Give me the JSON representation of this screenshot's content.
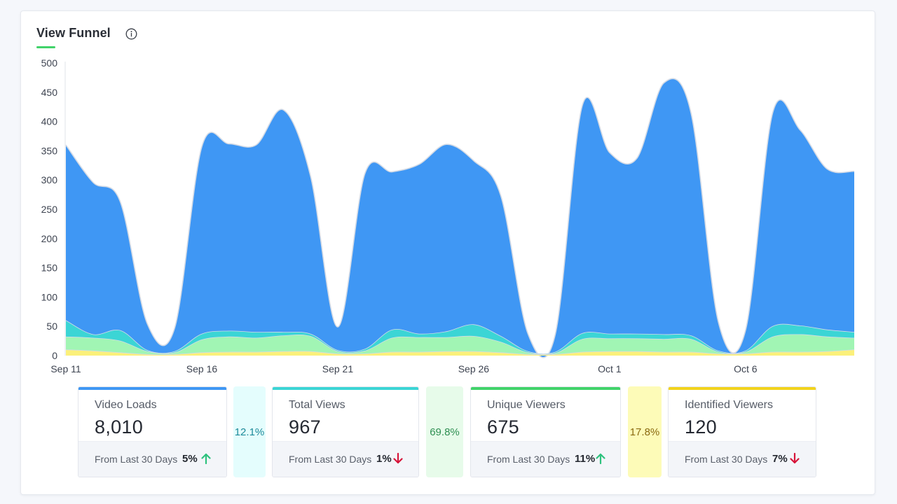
{
  "panel": {
    "title": "View Funnel",
    "info_icon": "info-circle-icon",
    "accent_color": "#41d36a"
  },
  "chart_data": {
    "type": "area",
    "stacked": true,
    "x": [
      "Sep 11",
      "Sep 12",
      "Sep 13",
      "Sep 14",
      "Sep 15",
      "Sep 16",
      "Sep 17",
      "Sep 18",
      "Sep 19",
      "Sep 20",
      "Sep 21",
      "Sep 22",
      "Sep 23",
      "Sep 24",
      "Sep 25",
      "Sep 26",
      "Sep 27",
      "Sep 28",
      "Sep 29",
      "Sep 30",
      "Oct 1",
      "Oct 2",
      "Oct 3",
      "Oct 4",
      "Oct 5",
      "Oct 6",
      "Oct 7",
      "Oct 8",
      "Oct 9",
      "Oct 10"
    ],
    "xticks": [
      "Sep 11",
      "Sep 16",
      "Sep 21",
      "Sep 26",
      "Oct 1",
      "Oct 6"
    ],
    "yticks": [
      0,
      50,
      100,
      150,
      200,
      250,
      300,
      350,
      400,
      450,
      500
    ],
    "ylim": [
      0,
      500
    ],
    "series": [
      {
        "color": "#fbf07a",
        "values": [
          10,
          8,
          5,
          2,
          2,
          5,
          6,
          6,
          7,
          7,
          3,
          3,
          6,
          6,
          7,
          7,
          5,
          2,
          2,
          6,
          7,
          7,
          6,
          6,
          3,
          3,
          6,
          6,
          7,
          10
        ]
      },
      {
        "color": "#a1f5b4",
        "values": [
          22,
          22,
          20,
          5,
          3,
          22,
          26,
          24,
          27,
          26,
          4,
          5,
          24,
          25,
          24,
          26,
          18,
          3,
          2,
          22,
          22,
          22,
          22,
          22,
          3,
          3,
          26,
          30,
          25,
          20
        ]
      },
      {
        "color": "#3bd5d5",
        "values": [
          28,
          6,
          18,
          2,
          2,
          10,
          10,
          10,
          6,
          4,
          2,
          3,
          14,
          6,
          10,
          20,
          10,
          2,
          2,
          10,
          8,
          8,
          8,
          6,
          2,
          2,
          18,
          15,
          12,
          10
        ]
      },
      {
        "color": "#3f97f4",
        "values": [
          300,
          260,
          220,
          45,
          40,
          320,
          320,
          320,
          380,
          270,
          40,
          300,
          270,
          290,
          320,
          280,
          240,
          30,
          30,
          390,
          310,
          300,
          430,
          380,
          50,
          35,
          365,
          335,
          275,
          275
        ]
      }
    ],
    "xlabel": "",
    "ylabel": "",
    "grid": false,
    "legend": "none"
  },
  "stats": [
    {
      "label": "Video Loads",
      "value": "8,010",
      "from": "From Last 30 Days",
      "change": "5%",
      "direction": "up",
      "color": "#3f97f4"
    },
    {
      "label": "Total Views",
      "value": "967",
      "from": "From Last 30 Days",
      "change": "1%",
      "direction": "down",
      "color": "#3bd5d5"
    },
    {
      "label": "Unique Viewers",
      "value": "675",
      "from": "From Last 30 Days",
      "change": "11%",
      "direction": "up",
      "color": "#41d36a"
    },
    {
      "label": "Identified Viewers",
      "value": "120",
      "from": "From Last 30 Days",
      "change": "7%",
      "direction": "down",
      "color": "#f2d31c"
    }
  ],
  "conversions": [
    {
      "value": "12.1%",
      "bg": "#e4fdfd",
      "fg": "#1d8a9a"
    },
    {
      "value": "69.8%",
      "bg": "#e7fbea",
      "fg": "#2f8f52"
    },
    {
      "value": "17.8%",
      "bg": "#fdfbb8",
      "fg": "#8a6a10"
    }
  ],
  "trend_colors": {
    "up": "#2ec27e",
    "down": "#d7153a"
  }
}
